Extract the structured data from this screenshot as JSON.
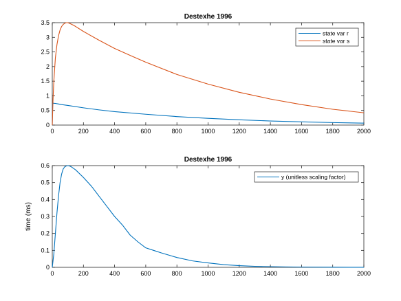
{
  "colors": {
    "series1": "#0072BD",
    "series2": "#D95319",
    "axis": "#262626",
    "background": "#ffffff"
  },
  "chart_data": [
    {
      "type": "line",
      "title": "Destexhe 1996",
      "xlabel": "",
      "ylabel": "",
      "xlim": [
        0,
        2000
      ],
      "ylim": [
        0,
        3.5
      ],
      "xticks": [
        0,
        200,
        400,
        600,
        800,
        1000,
        1200,
        1400,
        1600,
        1800,
        2000
      ],
      "yticks": [
        0,
        0.5,
        1,
        1.5,
        2,
        2.5,
        3,
        3.5
      ],
      "ytick_labels": [
        "0",
        "0.5",
        "1",
        "1.5",
        "2",
        "2.5",
        "3",
        "3.5"
      ],
      "grid": false,
      "legend_position": "top-right",
      "series": [
        {
          "name": "state var r",
          "color": "#0072BD",
          "x": [
            0,
            1,
            2,
            5,
            10,
            20,
            40,
            60,
            100,
            200,
            300,
            400,
            600,
            800,
            1000,
            1200,
            1400,
            1600,
            1800,
            2000
          ],
          "y": [
            0,
            0.3,
            0.72,
            0.75,
            0.745,
            0.74,
            0.72,
            0.7,
            0.67,
            0.59,
            0.52,
            0.46,
            0.37,
            0.29,
            0.23,
            0.18,
            0.14,
            0.11,
            0.085,
            0.065
          ]
        },
        {
          "name": "state var s",
          "color": "#D95319",
          "x": [
            0,
            5,
            10,
            20,
            30,
            40,
            50,
            60,
            70,
            80,
            90,
            100,
            110,
            130,
            150,
            200,
            300,
            400,
            500,
            600,
            800,
            1000,
            1200,
            1400,
            1600,
            1800,
            2000
          ],
          "y": [
            0,
            0.9,
            1.5,
            2.3,
            2.75,
            3.05,
            3.25,
            3.37,
            3.44,
            3.48,
            3.5,
            3.5,
            3.48,
            3.43,
            3.37,
            3.2,
            2.9,
            2.62,
            2.38,
            2.15,
            1.73,
            1.4,
            1.12,
            0.89,
            0.7,
            0.54,
            0.42
          ]
        }
      ]
    },
    {
      "type": "line",
      "title": "Destexhe 1996",
      "xlabel": "",
      "ylabel": "time (ms)",
      "xlim": [
        0,
        2000
      ],
      "ylim": [
        0,
        0.6
      ],
      "xticks": [
        0,
        200,
        400,
        600,
        800,
        1000,
        1200,
        1400,
        1600,
        1800,
        2000
      ],
      "yticks": [
        0,
        0.1,
        0.2,
        0.3,
        0.4,
        0.5,
        0.6
      ],
      "ytick_labels": [
        "0",
        "0.1",
        "0.2",
        "0.3",
        "0.4",
        "0.5",
        "0.6"
      ],
      "grid": false,
      "legend_position": "top-right",
      "series": [
        {
          "name": "y (unitless scaling factor)",
          "color": "#0072BD",
          "x": [
            0,
            10,
            20,
            30,
            40,
            50,
            60,
            70,
            80,
            90,
            100,
            110,
            120,
            150,
            200,
            250,
            300,
            350,
            400,
            450,
            500,
            550,
            600,
            650,
            700,
            800,
            900,
            1000,
            1100,
            1200,
            1300,
            1400,
            1500,
            1600,
            1800,
            2000
          ],
          "y": [
            0,
            0.08,
            0.2,
            0.32,
            0.42,
            0.5,
            0.55,
            0.58,
            0.593,
            0.598,
            0.6,
            0.598,
            0.594,
            0.575,
            0.53,
            0.48,
            0.42,
            0.36,
            0.3,
            0.25,
            0.19,
            0.15,
            0.115,
            0.1,
            0.085,
            0.058,
            0.038,
            0.026,
            0.016,
            0.01,
            0.006,
            0.004,
            0.0025,
            0.0015,
            0.0006,
            0.0002
          ]
        }
      ]
    }
  ]
}
